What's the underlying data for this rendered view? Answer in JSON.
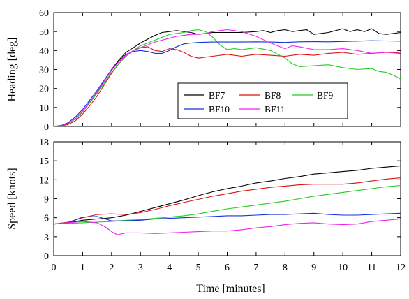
{
  "chart_data": [
    {
      "type": "line",
      "ylabel": "Heading [deg]",
      "xlim": [
        0,
        12
      ],
      "ylim": [
        0,
        60
      ],
      "yticks": [
        0,
        10,
        20,
        30,
        40,
        50,
        60
      ],
      "legend": {
        "placement": "inside-lower-right",
        "entries": [
          "BF7",
          "BF8",
          "BF9",
          "BF10",
          "BF11"
        ]
      },
      "series": [
        {
          "name": "BF7",
          "color": "#000000",
          "x": [
            0,
            0.25,
            0.5,
            0.75,
            1,
            1.25,
            1.5,
            1.75,
            2,
            2.25,
            2.5,
            2.75,
            3,
            3.25,
            3.5,
            3.75,
            4,
            4.25,
            4.5,
            4.75,
            5,
            5.5,
            6,
            6.5,
            7,
            7.25,
            7.5,
            7.75,
            8,
            8.25,
            8.5,
            8.75,
            9,
            9.5,
            10,
            10.25,
            10.5,
            10.75,
            11,
            11.25,
            11.5,
            11.75,
            12
          ],
          "y": [
            0,
            0.5,
            1.5,
            4,
            8,
            13,
            18,
            24,
            30,
            35,
            39,
            41.5,
            44,
            46,
            48,
            49.5,
            50,
            50.5,
            50,
            49.5,
            48.5,
            49.5,
            49.5,
            49.5,
            50,
            50.5,
            49.5,
            50.5,
            51,
            50,
            50.5,
            51,
            48.5,
            49.5,
            51.5,
            50,
            51,
            50,
            51.5,
            49,
            48.5,
            49,
            49.5
          ]
        },
        {
          "name": "BF8",
          "color": "#dd1111",
          "x": [
            0,
            0.25,
            0.5,
            0.75,
            1,
            1.25,
            1.5,
            1.75,
            2,
            2.25,
            2.5,
            2.75,
            3,
            3.25,
            3.5,
            3.75,
            4,
            4.25,
            4.5,
            4.75,
            5,
            5.25,
            5.5,
            6,
            6.5,
            7,
            7.5,
            8,
            8.5,
            9,
            9.5,
            10,
            10.5,
            11,
            11.5,
            12
          ],
          "y": [
            0,
            0.3,
            1,
            3,
            6.5,
            11,
            16,
            22,
            28,
            33,
            37,
            40,
            41.5,
            42,
            40,
            39.5,
            41,
            40.5,
            39,
            37,
            36,
            36.5,
            37,
            38,
            37,
            38,
            37.5,
            37,
            38,
            37.5,
            38.5,
            39,
            38,
            38.5,
            39,
            38.5
          ]
        },
        {
          "name": "BF9",
          "color": "#22cc22",
          "x": [
            0,
            0.25,
            0.5,
            0.75,
            1,
            1.25,
            1.5,
            1.75,
            2,
            2.25,
            2.5,
            2.75,
            3,
            3.25,
            3.5,
            3.75,
            4,
            4.25,
            4.5,
            4.75,
            5,
            5.25,
            5.5,
            5.75,
            6,
            6.25,
            6.5,
            7,
            7.5,
            8,
            8.25,
            8.5,
            9,
            9.5,
            10,
            10.5,
            11,
            11.25,
            11.5,
            11.75,
            12
          ],
          "y": [
            0,
            0.5,
            1.5,
            4,
            7.5,
            12.5,
            17.5,
            23,
            28.5,
            33,
            37,
            40,
            42.5,
            44,
            45.5,
            47,
            48.5,
            49,
            49.5,
            50.5,
            51,
            50,
            47,
            43,
            40.5,
            41,
            40.5,
            41.5,
            40,
            36,
            33,
            31.5,
            32,
            32.5,
            31,
            30,
            30.5,
            29,
            28.5,
            27,
            25
          ]
        },
        {
          "name": "BF10",
          "color": "#1133dd",
          "x": [
            0,
            0.25,
            0.5,
            0.75,
            1,
            1.25,
            1.5,
            1.75,
            2,
            2.25,
            2.5,
            2.75,
            3,
            3.25,
            3.5,
            3.75,
            4,
            4.25,
            4.5,
            4.75,
            5,
            5.5,
            6,
            6.5,
            7,
            7.5,
            8,
            8.5,
            9,
            9.5,
            10,
            10.5,
            11,
            11.5,
            12
          ],
          "y": [
            0,
            0.5,
            2,
            5,
            9,
            14,
            19,
            24.5,
            30,
            34.5,
            38,
            39.5,
            40,
            39.5,
            38.5,
            38.5,
            40,
            42,
            43.5,
            44,
            44.3,
            44.5,
            44.5,
            44.5,
            44.6,
            44.5,
            44.3,
            44.6,
            44.7,
            44.6,
            44.8,
            45,
            45.2,
            45.1,
            45
          ]
        },
        {
          "name": "BF11",
          "color": "#ee22ee",
          "x": [
            0,
            0.25,
            0.5,
            0.75,
            1,
            1.25,
            1.5,
            1.75,
            2,
            2.25,
            2.5,
            2.75,
            3,
            3.25,
            3.5,
            3.75,
            4,
            4.25,
            4.5,
            4.75,
            5,
            5.25,
            5.5,
            5.75,
            6,
            6.25,
            6.5,
            7,
            7.5,
            8,
            8.25,
            8.5,
            9,
            9.5,
            10,
            10.5,
            11,
            11.5,
            12
          ],
          "y": [
            0,
            0.5,
            1.5,
            4,
            8,
            13,
            18,
            24,
            29.5,
            34,
            37.5,
            40,
            41.5,
            43,
            44.5,
            45.5,
            46.5,
            47.5,
            48,
            48.5,
            48.5,
            49,
            50,
            50.5,
            51,
            50.5,
            50,
            47.5,
            44,
            41,
            42.5,
            42,
            40.5,
            40.5,
            41,
            40,
            38.5,
            39,
            39
          ]
        }
      ]
    },
    {
      "type": "line",
      "xlabel": "Time [minutes]",
      "ylabel": "Speed [knots]",
      "xlim": [
        0,
        12
      ],
      "ylim": [
        0,
        18
      ],
      "xticks": [
        0,
        1,
        2,
        3,
        4,
        5,
        6,
        7,
        8,
        9,
        10,
        11,
        12
      ],
      "yticks": [
        0,
        3,
        6,
        9,
        12,
        15,
        18
      ],
      "series": [
        {
          "name": "BF7",
          "color": "#000000",
          "x": [
            0,
            0.5,
            1,
            1.5,
            2,
            2.5,
            3,
            3.5,
            4,
            4.5,
            5,
            5.5,
            6,
            6.5,
            7,
            7.5,
            8,
            8.5,
            9,
            9.5,
            10,
            10.5,
            11,
            11.5,
            12
          ],
          "y": [
            5,
            5.2,
            5.6,
            5.8,
            6,
            6.4,
            7,
            7.6,
            8.2,
            8.8,
            9.5,
            10.1,
            10.6,
            11,
            11.5,
            11.8,
            12.2,
            12.5,
            12.9,
            13.1,
            13.3,
            13.5,
            13.8,
            14,
            14.2
          ]
        },
        {
          "name": "BF8",
          "color": "#dd1111",
          "x": [
            0,
            0.5,
            1,
            1.5,
            2,
            2.5,
            3,
            3.5,
            4,
            4.5,
            5,
            5.5,
            6,
            6.5,
            7,
            7.5,
            8,
            8.5,
            9,
            9.5,
            10,
            10.5,
            11,
            11.5,
            12
          ],
          "y": [
            5,
            5.3,
            6,
            6.5,
            6.6,
            6.5,
            6.8,
            7.3,
            7.9,
            8.4,
            8.9,
            9.4,
            9.8,
            10.2,
            10.5,
            10.8,
            11,
            11.2,
            11.3,
            11.3,
            11.3,
            11.5,
            11.8,
            12.1,
            12.3
          ]
        },
        {
          "name": "BF9",
          "color": "#22cc22",
          "x": [
            0,
            0.5,
            1,
            1.5,
            2,
            2.5,
            3,
            3.5,
            4,
            4.5,
            5,
            5.5,
            6,
            6.5,
            7,
            7.5,
            8,
            8.5,
            9,
            9.5,
            10,
            10.5,
            11,
            11.5,
            12
          ],
          "y": [
            5,
            5.1,
            5.2,
            5.3,
            5.4,
            5.6,
            5.7,
            5.9,
            6.1,
            6.3,
            6.6,
            7,
            7.4,
            7.7,
            8,
            8.3,
            8.6,
            9,
            9.4,
            9.7,
            10,
            10.3,
            10.6,
            10.9,
            11.1
          ]
        },
        {
          "name": "BF10",
          "color": "#1133dd",
          "x": [
            0,
            0.5,
            1,
            1.5,
            2,
            2.5,
            3,
            3.5,
            4,
            4.5,
            5,
            5.5,
            6,
            6.5,
            7,
            7.5,
            8,
            8.5,
            9,
            9.5,
            10,
            10.5,
            11,
            11.5,
            12
          ],
          "y": [
            5,
            5.2,
            6.1,
            6.2,
            5.5,
            5.5,
            5.6,
            5.8,
            5.9,
            6,
            6.1,
            6.2,
            6.3,
            6.3,
            6.4,
            6.5,
            6.5,
            6.6,
            6.7,
            6.5,
            6.4,
            6.4,
            6.5,
            6.6,
            6.7
          ]
        },
        {
          "name": "BF11",
          "color": "#ee22ee",
          "x": [
            0,
            0.5,
            1,
            1.5,
            1.8,
            2,
            2.2,
            2.5,
            3,
            3.5,
            4,
            4.5,
            5,
            5.5,
            6,
            6.5,
            7,
            7.5,
            8,
            8.5,
            9,
            9.5,
            10,
            10.5,
            11,
            11.5,
            12
          ],
          "y": [
            5,
            5.2,
            5.4,
            5.2,
            4.5,
            3.8,
            3.3,
            3.6,
            3.6,
            3.5,
            3.6,
            3.7,
            3.8,
            3.9,
            3.9,
            4.1,
            4.4,
            4.6,
            4.9,
            5.1,
            5.2,
            5,
            4.9,
            5,
            5.4,
            5.6,
            5.8
          ]
        }
      ]
    }
  ]
}
